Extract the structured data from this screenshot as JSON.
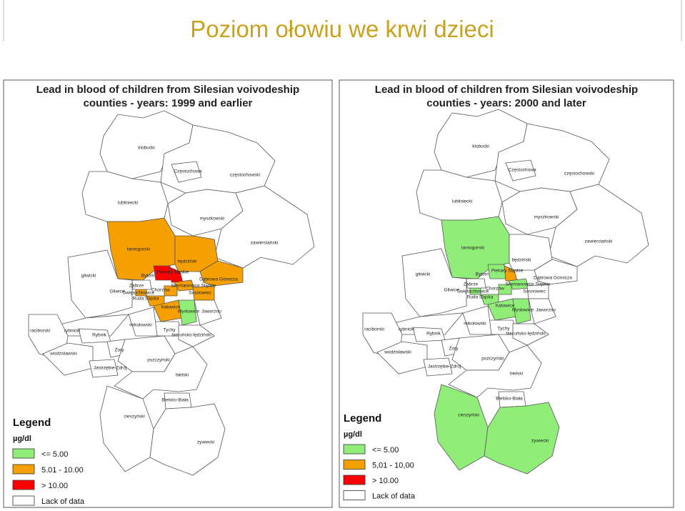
{
  "title": "Poziom ołowiu we krwi dzieci",
  "maps": [
    {
      "title_line1": "Lead in blood of children from Silesian voivodeship",
      "title_line2": "counties - years: 1999 and earlier",
      "legend": {
        "title": "Legend",
        "unit": "µg/dl",
        "items": [
          {
            "label": "<= 5.00",
            "color": "#90ee78"
          },
          {
            "label": "5.01 - 10.00",
            "color": "#f5a000"
          },
          {
            "label": "> 10.00",
            "color": "#ff0000"
          },
          {
            "label": "Lack of data",
            "color": "#ffffff"
          }
        ]
      },
      "counties": [
        {
          "name": "klobucki",
          "color": "#ffffff"
        },
        {
          "name": "częstochowski",
          "color": "#ffffff"
        },
        {
          "name": "Częstochowa",
          "color": "#ffffff"
        },
        {
          "name": "lubliniecki",
          "color": "#ffffff"
        },
        {
          "name": "myszkowski",
          "color": "#ffffff"
        },
        {
          "name": "zawierciański",
          "color": "#ffffff"
        },
        {
          "name": "tarnogorski",
          "color": "#f5a000"
        },
        {
          "name": "będziński",
          "color": "#f5a000"
        },
        {
          "name": "Dąbrowa Górnicza",
          "color": "#f5a000"
        },
        {
          "name": "Bytom",
          "color": "#ff0000"
        },
        {
          "name": "Piekary Śląskie",
          "color": "#ff0000"
        },
        {
          "name": "Siemianowice Śląskie",
          "color": "#f5a000"
        },
        {
          "name": "Sosnowiec",
          "color": "#f5a000"
        },
        {
          "name": "Chorzów",
          "color": "#f5a000"
        },
        {
          "name": "Ruda Śląska",
          "color": "#f5a000"
        },
        {
          "name": "Świętochłowice",
          "color": "#f5a000"
        },
        {
          "name": "Zabrze",
          "color": "#ffffff"
        },
        {
          "name": "Gliwice",
          "color": "#ffffff"
        },
        {
          "name": "gliwicki",
          "color": "#ffffff"
        },
        {
          "name": "Katowice",
          "color": "#f5a000"
        },
        {
          "name": "Mysłowice",
          "color": "#90ee78"
        },
        {
          "name": "Jaworzno",
          "color": "#ffffff"
        },
        {
          "name": "Tychy",
          "color": "#ffffff"
        },
        {
          "name": "bieruńsko-lędziński",
          "color": "#ffffff"
        },
        {
          "name": "mikołowski",
          "color": "#ffffff"
        },
        {
          "name": "rybnicki",
          "color": "#ffffff"
        },
        {
          "name": "raciborski",
          "color": "#ffffff"
        },
        {
          "name": "Rybnik",
          "color": "#ffffff"
        },
        {
          "name": "wodzisławski",
          "color": "#ffffff"
        },
        {
          "name": "Żory",
          "color": "#ffffff"
        },
        {
          "name": "Jastrzębie-Zdrój",
          "color": "#ffffff"
        },
        {
          "name": "pszczyński",
          "color": "#ffffff"
        },
        {
          "name": "bielski",
          "color": "#ffffff"
        },
        {
          "name": "Bielsko-Biała",
          "color": "#ffffff"
        },
        {
          "name": "cieszyński",
          "color": "#ffffff"
        },
        {
          "name": "żywiecki",
          "color": "#ffffff"
        }
      ]
    },
    {
      "title_line1": "Lead in blood of children from Silesian voivodeship",
      "title_line2": "counties - years: 2000 and later",
      "legend": {
        "title": "Legend",
        "unit": "µg/dl",
        "items": [
          {
            "label": "<= 5.00",
            "color": "#90ee78"
          },
          {
            "label": "5,01 - 10,00",
            "color": "#f5a000"
          },
          {
            "label": "> 10.00",
            "color": "#ff0000"
          },
          {
            "label": "Lack of data",
            "color": "#ffffff"
          }
        ]
      },
      "counties": [
        {
          "name": "klobucki",
          "color": "#ffffff"
        },
        {
          "name": "częstochowski",
          "color": "#ffffff"
        },
        {
          "name": "Częstochowa",
          "color": "#ffffff"
        },
        {
          "name": "lubliniecki",
          "color": "#ffffff"
        },
        {
          "name": "myszkowski",
          "color": "#ffffff"
        },
        {
          "name": "zawierciański",
          "color": "#ffffff"
        },
        {
          "name": "tarnogorski",
          "color": "#90ee78"
        },
        {
          "name": "będziński",
          "color": "#ffffff"
        },
        {
          "name": "Dąbrowa Górnicza",
          "color": "#ffffff"
        },
        {
          "name": "Bytom",
          "color": "#90ee78"
        },
        {
          "name": "Piekary Śląskie",
          "color": "#f5a000"
        },
        {
          "name": "Siemianowice Śląskie",
          "color": "#90ee78"
        },
        {
          "name": "Sosnowiec",
          "color": "#ffffff"
        },
        {
          "name": "Chorzów",
          "color": "#90ee78"
        },
        {
          "name": "Ruda Śląska",
          "color": "#90ee78"
        },
        {
          "name": "Świętochłowice",
          "color": "#90ee78"
        },
        {
          "name": "Zabrze",
          "color": "#ffffff"
        },
        {
          "name": "Gliwice",
          "color": "#ffffff"
        },
        {
          "name": "gliwicki",
          "color": "#ffffff"
        },
        {
          "name": "Katowice",
          "color": "#90ee78"
        },
        {
          "name": "Mysłowice",
          "color": "#90ee78"
        },
        {
          "name": "Jaworzno",
          "color": "#ffffff"
        },
        {
          "name": "Tychy",
          "color": "#ffffff"
        },
        {
          "name": "bieruńsko-lędziński",
          "color": "#ffffff"
        },
        {
          "name": "mikołowski",
          "color": "#ffffff"
        },
        {
          "name": "rybnicki",
          "color": "#ffffff"
        },
        {
          "name": "raciborski",
          "color": "#ffffff"
        },
        {
          "name": "Rybnik",
          "color": "#ffffff"
        },
        {
          "name": "wodzisławski",
          "color": "#ffffff"
        },
        {
          "name": "Żory",
          "color": "#ffffff"
        },
        {
          "name": "Jastrzębie-Zdrój",
          "color": "#ffffff"
        },
        {
          "name": "pszczyński",
          "color": "#ffffff"
        },
        {
          "name": "bielski",
          "color": "#ffffff"
        },
        {
          "name": "Bielsko-Biała",
          "color": "#ffffff"
        },
        {
          "name": "cieszyński",
          "color": "#90ee78"
        },
        {
          "name": "żywiecki",
          "color": "#90ee78"
        }
      ]
    }
  ]
}
